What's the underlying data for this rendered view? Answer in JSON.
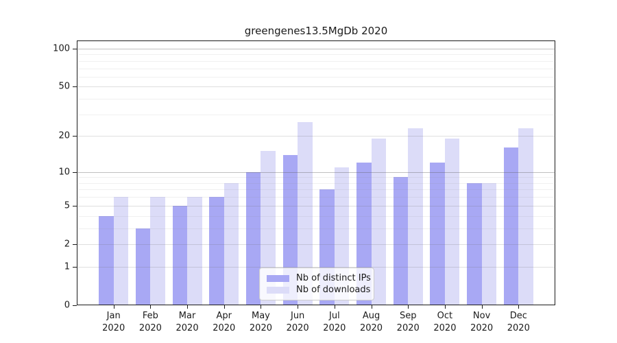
{
  "title": "greengenes13.5MgDb 2020",
  "chart_data": {
    "type": "bar",
    "title": "greengenes13.5MgDb 2020",
    "categories": [
      "Jan 2020",
      "Feb 2020",
      "Mar 2020",
      "Apr 2020",
      "May 2020",
      "Jun 2020",
      "Jul 2020",
      "Aug 2020",
      "Sep 2020",
      "Oct 2020",
      "Nov 2020",
      "Dec 2020"
    ],
    "month_labels": [
      "Jan",
      "Feb",
      "Mar",
      "Apr",
      "May",
      "Jun",
      "Jul",
      "Aug",
      "Sep",
      "Oct",
      "Nov",
      "Dec"
    ],
    "year_label": "2020",
    "series": [
      {
        "name": "Nb of distinct IPs",
        "color": "#a8a8f4",
        "values": [
          4,
          3,
          5,
          6,
          10,
          14,
          7,
          12,
          9,
          12,
          8,
          16
        ]
      },
      {
        "name": "Nb of downloads",
        "color": "#dcdcf8",
        "values": [
          6,
          6,
          6,
          8,
          15,
          26,
          11,
          19,
          23,
          19,
          8,
          23
        ]
      }
    ],
    "y_axis": {
      "scale": "log10(1+x)",
      "tick_values": [
        0,
        1,
        2,
        5,
        10,
        20,
        50,
        100
      ],
      "tick_labels": [
        "0",
        "1",
        "2",
        "5",
        "10",
        "20",
        "50",
        "100"
      ],
      "major_grid_values": [
        10,
        100
      ],
      "minor_grid_values": [
        3,
        4,
        6,
        7,
        8,
        9,
        30,
        40,
        60,
        70,
        80,
        90
      ],
      "ylim": [
        0,
        116
      ]
    },
    "grid": "on",
    "legend_position": "lower center"
  }
}
